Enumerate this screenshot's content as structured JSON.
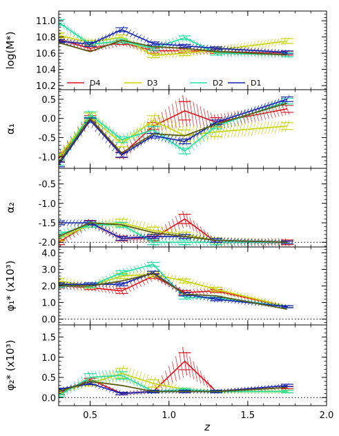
{
  "colors": {
    "D4": "#e0101a",
    "D3": "#c8d400",
    "D2": "#20e0a0",
    "D1": "#1020b0",
    "fit": "#5a5a10",
    "axis": "#000000"
  },
  "chart_data": {
    "type": "line",
    "x_axis": {
      "label": "z",
      "range": [
        0.3,
        2.0
      ],
      "ticks": [
        0.5,
        1.0,
        1.5,
        2.0
      ],
      "tick_labels": [
        "0.5",
        "1.0",
        "1.5",
        "2.0"
      ]
    },
    "legend": {
      "placement": "bottom of top panel",
      "entries": [
        "D4",
        "D3",
        "D2",
        "D1"
      ]
    },
    "panels": [
      {
        "id": "logM",
        "ylabel": "log(M*)",
        "ylim": [
          10.15,
          11.12
        ],
        "yticks": [
          10.2,
          10.4,
          10.6,
          10.8,
          11.0
        ],
        "ytick_labels": [
          "10.2",
          "10.4",
          "10.6",
          "10.8",
          "11.0"
        ],
        "reference_line": null,
        "series": [
          {
            "name": "D4",
            "x": [
              0.3,
              0.5,
              0.7,
              0.9,
              1.1,
              1.3,
              1.75
            ],
            "y": [
              10.77,
              10.66,
              10.73,
              10.63,
              10.63,
              10.62,
              10.6
            ],
            "err": [
              0.05,
              0.04,
              0.04,
              0.05,
              0.04,
              0.04,
              0.04
            ]
          },
          {
            "name": "D3",
            "x": [
              0.3,
              0.5,
              0.7,
              0.9,
              1.1,
              1.3,
              1.75
            ],
            "y": [
              10.82,
              10.73,
              10.8,
              10.57,
              10.6,
              10.64,
              10.75
            ],
            "err": [
              0.05,
              0.05,
              0.04,
              0.04,
              0.05,
              0.05,
              0.05
            ]
          },
          {
            "name": "D2",
            "x": [
              0.3,
              0.5,
              0.7,
              0.9,
              1.1,
              1.3,
              1.75
            ],
            "y": [
              10.98,
              10.71,
              10.75,
              10.66,
              10.79,
              10.6,
              10.58
            ],
            "err": [
              0.06,
              0.04,
              0.04,
              0.04,
              0.04,
              0.04,
              0.04
            ]
          },
          {
            "name": "D1",
            "x": [
              0.3,
              0.5,
              0.7,
              0.9,
              1.1,
              1.3,
              1.75
            ],
            "y": [
              10.75,
              10.71,
              10.89,
              10.72,
              10.69,
              10.66,
              10.61
            ],
            "err": [
              0.03,
              0.04,
              0.04,
              0.03,
              0.03,
              0.03,
              0.03
            ]
          },
          {
            "name": "",
            "fit": true,
            "x": [
              0.3,
              0.5,
              0.7,
              0.9,
              1.1,
              1.3,
              1.75
            ],
            "y": [
              10.73,
              10.62,
              10.76,
              10.68,
              10.66,
              10.62,
              10.58
            ]
          }
        ]
      },
      {
        "id": "alpha1",
        "ylabel": "α₁",
        "ylim": [
          -1.3,
          0.75
        ],
        "yticks": [
          -1.0,
          -0.5,
          0.0,
          0.5
        ],
        "ytick_labels": [
          "-1.0",
          "-0.5",
          "0.0",
          "0.5"
        ],
        "reference_line": null,
        "series": [
          {
            "name": "D4",
            "x": [
              0.3,
              0.5,
              0.7,
              0.9,
              1.1,
              1.3,
              1.75
            ],
            "y": [
              -1.05,
              0.0,
              -0.95,
              -0.2,
              0.2,
              -0.1,
              0.25
            ],
            "err": [
              0.12,
              0.12,
              0.12,
              0.15,
              0.4,
              0.2,
              0.15
            ]
          },
          {
            "name": "D3",
            "x": [
              0.3,
              0.5,
              0.7,
              0.9,
              1.1,
              1.3,
              1.75
            ],
            "y": [
              -1.0,
              0.05,
              -0.65,
              -0.05,
              -0.45,
              -0.35,
              -0.2
            ],
            "err": [
              0.15,
              0.15,
              0.15,
              0.2,
              0.25,
              0.2,
              0.15
            ]
          },
          {
            "name": "D2",
            "x": [
              0.3,
              0.5,
              0.7,
              0.9,
              1.1,
              1.3,
              1.75
            ],
            "y": [
              -1.15,
              0.1,
              -0.55,
              -0.3,
              -0.85,
              -0.2,
              0.45
            ],
            "err": [
              0.12,
              0.12,
              0.12,
              0.15,
              0.12,
              0.12,
              0.12
            ]
          },
          {
            "name": "D1",
            "x": [
              0.3,
              0.5,
              0.7,
              0.9,
              1.1,
              1.3,
              1.75
            ],
            "y": [
              -1.2,
              -0.05,
              -0.95,
              -0.45,
              -0.6,
              -0.1,
              0.5
            ],
            "err": [
              0.1,
              0.1,
              0.1,
              0.1,
              0.1,
              0.1,
              0.1
            ]
          },
          {
            "name": "",
            "fit": true,
            "x": [
              0.3,
              0.5,
              0.7,
              0.9,
              1.1,
              1.3,
              1.75
            ],
            "y": [
              -1.15,
              0.0,
              -0.9,
              -0.4,
              -0.45,
              -0.15,
              0.4
            ]
          }
        ]
      },
      {
        "id": "alpha2",
        "ylabel": "α₂",
        "ylim": [
          -2.12,
          -0.1
        ],
        "yticks": [
          -2.0,
          -1.5,
          -1.0,
          -0.5
        ],
        "ytick_labels": [
          "-2.0",
          "-1.5",
          "-1.0",
          "-0.5"
        ],
        "reference_line": -2.0,
        "series": [
          {
            "name": "D4",
            "x": [
              0.3,
              0.5,
              0.7,
              0.9,
              1.1,
              1.3,
              1.75
            ],
            "y": [
              -2.0,
              -1.5,
              -1.9,
              -1.9,
              -1.4,
              -2.0,
              -2.0
            ],
            "err": [
              0.1,
              0.1,
              0.1,
              0.1,
              0.2,
              0.1,
              0.1
            ]
          },
          {
            "name": "D3",
            "x": [
              0.3,
              0.5,
              0.7,
              0.9,
              1.1,
              1.3,
              1.75
            ],
            "y": [
              -1.9,
              -1.55,
              -1.5,
              -1.7,
              -1.8,
              -1.95,
              -2.0
            ],
            "err": [
              0.1,
              0.1,
              0.15,
              0.15,
              0.1,
              0.1,
              0.05
            ]
          },
          {
            "name": "D2",
            "x": [
              0.3,
              0.5,
              0.7,
              0.9,
              1.1,
              1.3,
              1.75
            ],
            "y": [
              -1.8,
              -1.55,
              -1.55,
              -2.0,
              -2.0,
              -2.0,
              -2.0
            ],
            "err": [
              0.1,
              0.1,
              0.1,
              0.1,
              0.1,
              0.1,
              0.05
            ]
          },
          {
            "name": "D1",
            "x": [
              0.3,
              0.5,
              0.7,
              0.9,
              1.1,
              1.3,
              1.75
            ],
            "y": [
              -1.5,
              -1.5,
              -1.9,
              -1.85,
              -1.85,
              -1.95,
              -2.0
            ],
            "err": [
              0.08,
              0.08,
              0.08,
              0.08,
              0.08,
              0.08,
              0.05
            ]
          },
          {
            "name": "",
            "fit": true,
            "x": [
              0.3,
              0.5,
              0.7,
              0.9,
              1.1,
              1.3,
              1.75
            ],
            "y": [
              -1.85,
              -1.5,
              -1.55,
              -1.75,
              -1.85,
              -1.95,
              -2.0
            ]
          }
        ]
      },
      {
        "id": "phi1",
        "ylabel": "φ₁* (x10³)",
        "ylim": [
          -0.35,
          4.35
        ],
        "yticks": [
          0.0,
          1.0,
          2.0,
          3.0,
          4.0
        ],
        "ytick_labels": [
          "0.0",
          "1.0",
          "2.0",
          "3.0",
          "4.0"
        ],
        "reference_line": 0.0,
        "series": [
          {
            "name": "D4",
            "x": [
              0.3,
              0.5,
              0.7,
              0.9,
              1.1,
              1.3,
              1.75
            ],
            "y": [
              2.0,
              1.9,
              1.7,
              2.6,
              1.6,
              1.7,
              0.75
            ],
            "err": [
              0.2,
              0.2,
              0.25,
              0.25,
              0.2,
              0.15,
              0.1
            ]
          },
          {
            "name": "D3",
            "x": [
              0.3,
              0.5,
              0.7,
              0.9,
              1.1,
              1.3,
              1.75
            ],
            "y": [
              2.3,
              2.0,
              2.6,
              2.7,
              2.3,
              1.8,
              0.75
            ],
            "err": [
              0.25,
              0.2,
              0.25,
              0.25,
              0.2,
              0.2,
              0.1
            ]
          },
          {
            "name": "D2",
            "x": [
              0.3,
              0.5,
              0.7,
              0.9,
              1.1,
              1.3,
              1.75
            ],
            "y": [
              2.0,
              2.0,
              2.8,
              3.3,
              1.3,
              1.3,
              0.75
            ],
            "err": [
              0.15,
              0.15,
              0.2,
              0.2,
              0.15,
              0.15,
              0.1
            ]
          },
          {
            "name": "D1",
            "x": [
              0.3,
              0.5,
              0.7,
              0.9,
              1.1,
              1.3,
              1.75
            ],
            "y": [
              2.1,
              2.1,
              2.1,
              2.8,
              1.5,
              1.2,
              0.75
            ],
            "err": [
              0.15,
              0.15,
              0.15,
              0.15,
              0.15,
              0.15,
              0.1
            ]
          },
          {
            "name": "",
            "fit": true,
            "x": [
              0.3,
              0.5,
              0.7,
              0.9,
              1.1,
              1.3,
              1.75
            ],
            "y": [
              2.05,
              2.0,
              2.3,
              2.75,
              1.5,
              1.4,
              0.6
            ]
          }
        ]
      },
      {
        "id": "phi2",
        "ylabel": "φ₂* (x10³)",
        "ylim": [
          -0.2,
          1.8
        ],
        "yticks": [
          0.0,
          0.5,
          1.0,
          1.5
        ],
        "ytick_labels": [
          "0.0",
          "0.5",
          "1.0",
          "1.5"
        ],
        "reference_line": 0.0,
        "series": [
          {
            "name": "D4",
            "x": [
              0.3,
              0.5,
              0.7,
              0.9,
              1.1,
              1.3,
              1.75
            ],
            "y": [
              0.1,
              0.45,
              0.1,
              0.15,
              0.9,
              0.15,
              0.25
            ],
            "err": [
              0.05,
              0.05,
              0.05,
              0.05,
              0.35,
              0.05,
              0.05
            ]
          },
          {
            "name": "D3",
            "x": [
              0.3,
              0.5,
              0.7,
              0.9,
              1.1,
              1.3,
              1.75
            ],
            "y": [
              0.15,
              0.35,
              0.6,
              0.35,
              0.2,
              0.15,
              0.15
            ],
            "err": [
              0.05,
              0.1,
              0.2,
              0.15,
              0.05,
              0.05,
              0.05
            ]
          },
          {
            "name": "D2",
            "x": [
              0.3,
              0.5,
              0.7,
              0.9,
              1.1,
              1.3,
              1.75
            ],
            "y": [
              0.05,
              0.5,
              0.55,
              0.15,
              0.2,
              0.15,
              0.15
            ],
            "err": [
              0.05,
              0.15,
              0.15,
              0.05,
              0.05,
              0.05,
              0.05
            ]
          },
          {
            "name": "D1",
            "x": [
              0.3,
              0.5,
              0.7,
              0.9,
              1.1,
              1.3,
              1.75
            ],
            "y": [
              0.2,
              0.35,
              0.1,
              0.15,
              0.15,
              0.15,
              0.3
            ],
            "err": [
              0.05,
              0.05,
              0.05,
              0.05,
              0.05,
              0.05,
              0.05
            ]
          },
          {
            "name": "",
            "fit": true,
            "x": [
              0.3,
              0.5,
              0.7,
              0.9,
              1.1,
              1.3,
              1.75
            ],
            "y": [
              0.15,
              0.4,
              0.3,
              0.15,
              0.15,
              0.15,
              0.25
            ]
          }
        ]
      }
    ]
  }
}
